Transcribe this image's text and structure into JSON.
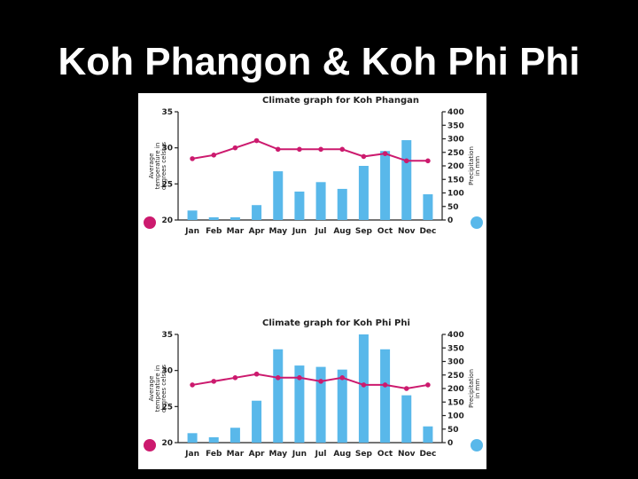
{
  "slide": {
    "title": "Koh Phangon & Koh Phi Phi"
  },
  "colors": {
    "background": "#000000",
    "panel": "#ffffff",
    "temperature": "#cc1a6e",
    "precipitation": "#59b8ea"
  },
  "chart_data": [
    {
      "type": "bar+line",
      "title": "Climate graph for Koh Phangan",
      "categories": [
        "Jan",
        "Feb",
        "Mar",
        "Apr",
        "May",
        "Jun",
        "Jul",
        "Aug",
        "Sep",
        "Oct",
        "Nov",
        "Dec"
      ],
      "ylabel_left": [
        "Average",
        "temperature in",
        "degrees celsius"
      ],
      "ylabel_right": [
        "Precipitation",
        "in mm"
      ],
      "ylim_left": [
        20,
        35
      ],
      "ylim_right": [
        0,
        400
      ],
      "yticks_left": [
        "20",
        "25",
        "30",
        "35"
      ],
      "yticks_right": [
        "0",
        "50",
        "100",
        "150",
        "200",
        "250",
        "300",
        "350",
        "400"
      ],
      "legend_markers": {
        "temperature": "left-bottom-circle",
        "precipitation": "right-bottom-circle"
      },
      "series": [
        {
          "kind": "bar",
          "axis": "right",
          "values": [
            35,
            10,
            10,
            55,
            180,
            105,
            140,
            115,
            200,
            255,
            295,
            95
          ]
        },
        {
          "kind": "line",
          "axis": "left",
          "values": [
            28.5,
            29,
            30,
            31,
            29.8,
            29.8,
            29.8,
            29.8,
            28.8,
            29.2,
            28.2,
            28.2
          ]
        }
      ]
    },
    {
      "type": "bar+line",
      "title": "Climate graph for Koh Phi Phi",
      "categories": [
        "Jan",
        "Feb",
        "Mar",
        "Apr",
        "May",
        "Jun",
        "Jul",
        "Aug",
        "Sep",
        "Oct",
        "Nov",
        "Dec"
      ],
      "ylabel_left": [
        "Average",
        "temperature in",
        "degrees celsius"
      ],
      "ylabel_right": [
        "Precipitation",
        "in mm"
      ],
      "ylim_left": [
        20,
        35
      ],
      "ylim_right": [
        0,
        400
      ],
      "yticks_left": [
        "20",
        "25",
        "30",
        "35"
      ],
      "yticks_right": [
        "0",
        "50",
        "100",
        "150",
        "200",
        "250",
        "300",
        "350",
        "400"
      ],
      "legend_markers": {
        "temperature": "left-bottom-circle",
        "precipitation": "right-bottom-circle"
      },
      "series": [
        {
          "kind": "bar",
          "axis": "right",
          "values": [
            35,
            20,
            55,
            155,
            345,
            285,
            280,
            270,
            400,
            345,
            175,
            60
          ]
        },
        {
          "kind": "line",
          "axis": "left",
          "values": [
            28,
            28.5,
            29,
            29.5,
            29,
            29,
            28.5,
            29,
            28,
            28,
            27.5,
            28
          ]
        }
      ]
    }
  ]
}
